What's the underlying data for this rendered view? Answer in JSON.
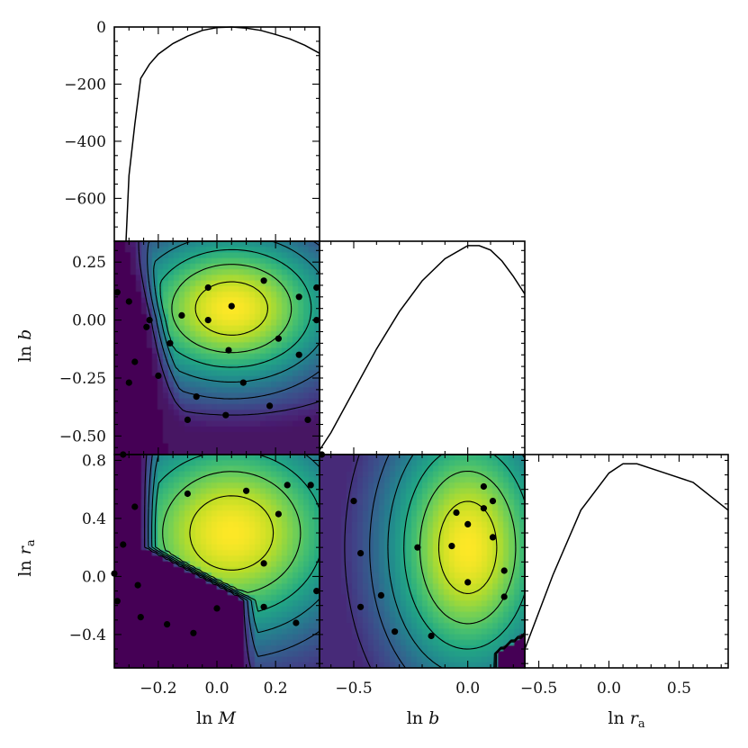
{
  "chart_data": [
    {
      "panel": "lnM-profile",
      "type": "line",
      "x_name": "ln M",
      "ylim": [
        -750,
        0
      ],
      "xlim": [
        -0.35,
        0.35
      ],
      "x_ticks": [
        -0.2,
        0.0,
        0.2
      ],
      "y_ticks": [
        0,
        -200,
        -400,
        -600
      ],
      "y_tick_labels": [
        "0",
        "−200",
        "−400",
        "−600"
      ],
      "x": [
        -0.31,
        -0.3,
        -0.28,
        -0.26,
        -0.23,
        -0.2,
        -0.15,
        -0.1,
        -0.05,
        0.0,
        0.05,
        0.1,
        0.15,
        0.2,
        0.25,
        0.3,
        0.35
      ],
      "y": [
        -750,
        -520,
        -340,
        -180,
        -130,
        -95,
        -58,
        -32,
        -12,
        -2,
        0,
        -4,
        -12,
        -26,
        -42,
        -64,
        -92
      ]
    },
    {
      "panel": "lnb-profile",
      "type": "line",
      "xlim": [
        -0.65,
        0.25
      ],
      "x": [
        -0.65,
        -0.6,
        -0.5,
        -0.4,
        -0.3,
        -0.2,
        -0.1,
        0.0,
        0.05,
        0.1,
        0.15,
        0.2,
        0.25
      ],
      "y": [
        -0.93,
        -0.85,
        -0.66,
        -0.47,
        -0.3,
        -0.16,
        -0.06,
        0.0,
        0.0,
        -0.02,
        -0.07,
        -0.14,
        -0.22
      ]
    },
    {
      "panel": "lnra-profile",
      "type": "line",
      "xlim": [
        -0.6,
        0.85
      ],
      "x_ticks": [
        -0.5,
        0.0,
        0.5
      ],
      "x_tick_labels": [
        "−0.5",
        "0.0",
        "0.5"
      ],
      "x_name": "ln r_a",
      "x": [
        -0.6,
        -0.4,
        -0.2,
        0.0,
        0.1,
        0.2,
        0.4,
        0.6,
        0.85
      ],
      "y": [
        -0.2,
        -0.12,
        -0.05,
        -0.01,
        0.0,
        0.0,
        -0.01,
        -0.02,
        -0.05
      ]
    },
    {
      "panel": "lnM-lnb",
      "type": "heatmap",
      "y_name": "ln b",
      "xlim": [
        -0.35,
        0.35
      ],
      "ylim": [
        -0.58,
        0.34
      ],
      "y_ticks": [
        0.25,
        0.0,
        -0.25,
        -0.5
      ],
      "y_tick_labels": [
        "0.25",
        "0.00",
        "−0.25",
        "−0.50"
      ],
      "points": [
        [
          -0.34,
          0.12
        ],
        [
          -0.3,
          0.08
        ],
        [
          -0.24,
          -0.03
        ],
        [
          -0.23,
          0.0
        ],
        [
          -0.28,
          -0.18
        ],
        [
          -0.3,
          -0.27
        ],
        [
          -0.2,
          -0.24
        ],
        [
          -0.16,
          -0.1
        ],
        [
          -0.12,
          0.02
        ],
        [
          -0.03,
          0.14
        ],
        [
          -0.03,
          0.0
        ],
        [
          0.05,
          0.06
        ],
        [
          0.16,
          0.17
        ],
        [
          0.28,
          0.1
        ],
        [
          0.34,
          0.0
        ],
        [
          0.34,
          0.14
        ],
        [
          0.04,
          -0.13
        ],
        [
          0.21,
          -0.08
        ],
        [
          0.28,
          -0.15
        ],
        [
          0.09,
          -0.27
        ],
        [
          -0.07,
          -0.33
        ],
        [
          -0.1,
          -0.43
        ],
        [
          0.03,
          -0.41
        ],
        [
          0.18,
          -0.37
        ],
        [
          0.31,
          -0.43
        ]
      ]
    },
    {
      "panel": "lnM-lnra",
      "type": "heatmap",
      "x_name": "ln M",
      "y_name": "ln r_a",
      "xlim": [
        -0.35,
        0.35
      ],
      "ylim": [
        -0.63,
        0.84
      ],
      "x_ticks": [
        -0.2,
        0.0,
        0.2
      ],
      "x_tick_labels": [
        "−0.2",
        "0.0",
        "0.2"
      ],
      "y_ticks": [
        0.8,
        0.4,
        0.0,
        -0.4
      ],
      "y_tick_labels": [
        "0.8",
        "0.4",
        "0.0",
        "−0.4"
      ],
      "points": [
        [
          -0.32,
          0.84
        ],
        [
          -0.28,
          0.48
        ],
        [
          -0.35,
          0.02
        ],
        [
          -0.32,
          0.22
        ],
        [
          -0.27,
          -0.06
        ],
        [
          -0.34,
          -0.17
        ],
        [
          -0.26,
          -0.28
        ],
        [
          -0.17,
          -0.33
        ],
        [
          -0.08,
          -0.39
        ],
        [
          0.0,
          -0.22
        ],
        [
          -0.1,
          0.57
        ],
        [
          0.1,
          0.59
        ],
        [
          0.24,
          0.63
        ],
        [
          0.32,
          0.63
        ],
        [
          0.21,
          0.43
        ],
        [
          0.16,
          0.09
        ],
        [
          0.34,
          -0.1
        ],
        [
          0.16,
          -0.21
        ],
        [
          0.27,
          -0.32
        ]
      ]
    },
    {
      "panel": "lnb-lnra",
      "type": "heatmap",
      "x_name": "ln b",
      "xlim": [
        -0.65,
        0.25
      ],
      "ylim": [
        -0.63,
        0.84
      ],
      "x_ticks": [
        -0.5,
        0.0
      ],
      "x_tick_labels": [
        "−0.5",
        "0.0"
      ],
      "points": [
        [
          -0.64,
          0.84
        ],
        [
          -0.5,
          0.52
        ],
        [
          -0.47,
          0.16
        ],
        [
          -0.47,
          -0.21
        ],
        [
          -0.38,
          -0.13
        ],
        [
          -0.32,
          -0.38
        ],
        [
          -0.22,
          0.2
        ],
        [
          -0.16,
          -0.41
        ],
        [
          -0.07,
          0.21
        ],
        [
          -0.05,
          0.44
        ],
        [
          0.07,
          0.47
        ],
        [
          0.0,
          0.36
        ],
        [
          0.07,
          0.62
        ],
        [
          0.11,
          0.52
        ],
        [
          0.11,
          0.27
        ],
        [
          0.16,
          0.04
        ],
        [
          0.0,
          -0.04
        ],
        [
          0.16,
          -0.14
        ]
      ]
    }
  ]
}
